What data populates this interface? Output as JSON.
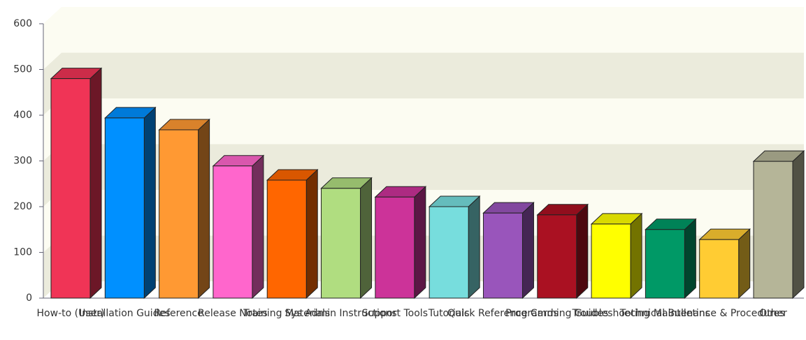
{
  "chart_data": {
    "type": "bar3d",
    "categories": [
      "How-to (User)",
      "Installation Guides",
      "Reference",
      "Release Notes",
      "Training Materials",
      "Sys Admin Instructions",
      "Support Tools",
      "Tutorials",
      "Quick Reference Cards",
      "Programming Guides",
      "Troubleshooting",
      "Technical Bulletins",
      "Maintenance & Procedures",
      "Other"
    ],
    "values": [
      480,
      394,
      368,
      289,
      258,
      240,
      221,
      200,
      186,
      182,
      162,
      150,
      128,
      299
    ],
    "colors": [
      "#f03456",
      "#0090ff",
      "#ff9933",
      "#ff66cc",
      "#ff6600",
      "#b0dd80",
      "#cc3399",
      "#77dddd",
      "#9955bb",
      "#aa1122",
      "#ffff00",
      "#009966",
      "#ffcc33",
      "#b5b598"
    ],
    "ylim": [
      0,
      600
    ],
    "yticks": [
      0,
      100,
      200,
      300,
      400,
      500,
      600
    ],
    "grid": true
  }
}
